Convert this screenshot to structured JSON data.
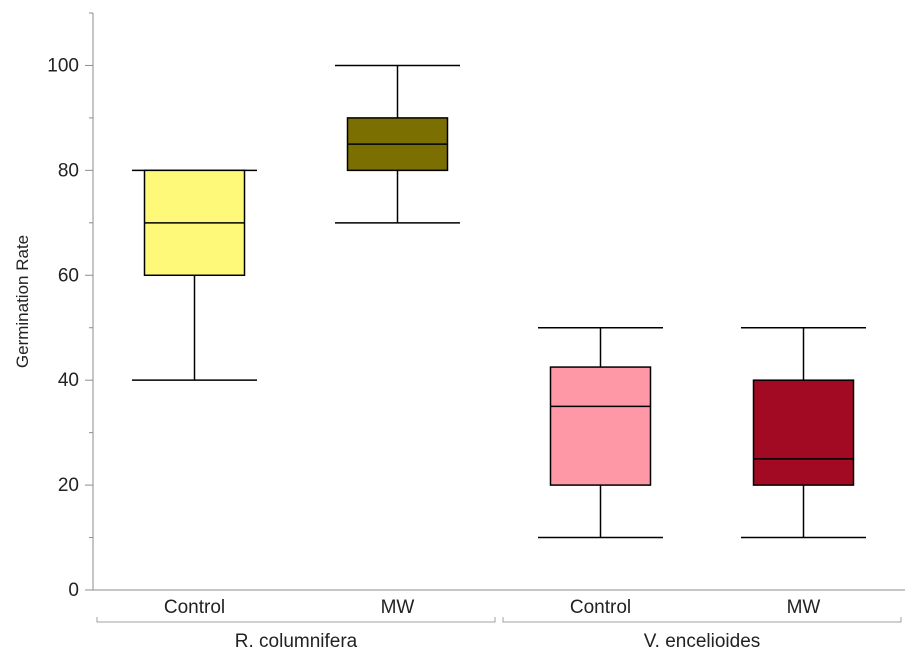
{
  "chart_data": {
    "type": "box",
    "title": "",
    "ylabel": "Germination Rate",
    "xlabel": "",
    "ylim": [
      0,
      110
    ],
    "yticks": [
      0,
      20,
      40,
      60,
      80,
      100
    ],
    "grid": false,
    "groups": [
      {
        "name": "R. columnifera",
        "boxes": [
          {
            "category": "Control",
            "whisker_low": 40,
            "q1": 60,
            "median": 70,
            "q3": 80,
            "whisker_high": 80,
            "color": "#fff97a"
          },
          {
            "category": "MW",
            "whisker_low": 70,
            "q1": 80,
            "median": 85,
            "q3": 90,
            "whisker_high": 100,
            "color": "#7a6f00"
          }
        ]
      },
      {
        "name": "V. encelioides",
        "boxes": [
          {
            "category": "Control",
            "whisker_low": 10,
            "q1": 20,
            "median": 35,
            "q3": 42.5,
            "whisker_high": 50,
            "color": "#ff98a6"
          },
          {
            "category": "MW",
            "whisker_low": 10,
            "q1": 20,
            "median": 25,
            "q3": 40,
            "whisker_high": 50,
            "color": "#a10a22"
          }
        ]
      }
    ]
  }
}
